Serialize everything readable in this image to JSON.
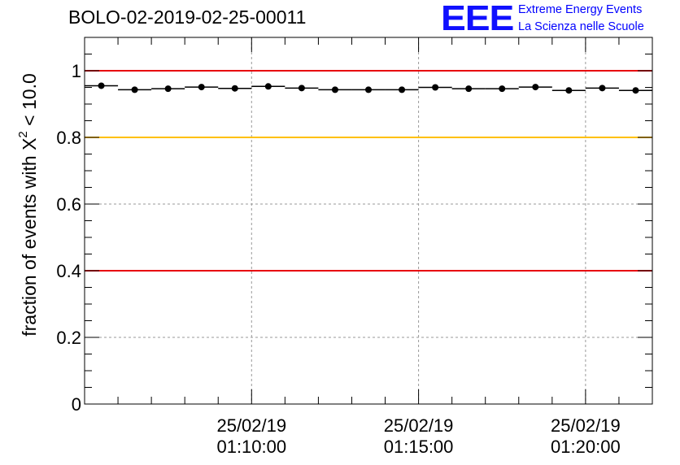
{
  "title": "BOLO-02-2019-02-25-00011",
  "logo": {
    "mark": "EEE",
    "line1": "Extreme Energy Events",
    "line2": "La Scienza nelle Scuole"
  },
  "chart_data": {
    "type": "scatter",
    "ylabel_prefix": "fraction of events with X",
    "ylabel_sup": "2",
    "ylabel_suffix": " < 10.0",
    "xlabel": "",
    "x_unit": "minutes",
    "xlim": [
      "01:05:00",
      "01:22:00"
    ],
    "ylim": [
      0,
      1.1
    ],
    "yticks": [
      0,
      0.2,
      0.4,
      0.6,
      0.8,
      1
    ],
    "ytick_labels": [
      "0",
      "0.2",
      "0.4",
      "0.6",
      "0.8",
      "1"
    ],
    "xticks": [
      {
        "x": "01:10:00",
        "date": "25/02/19",
        "time": "01:10:00"
      },
      {
        "x": "01:15:00",
        "date": "25/02/19",
        "time": "01:15:00"
      },
      {
        "x": "01:20:00",
        "date": "25/02/19",
        "time": "01:20:00"
      }
    ],
    "grid": true,
    "reference_lines": [
      {
        "y": 1.0,
        "color": "#e8000b"
      },
      {
        "y": 0.8,
        "color": "#ffc000"
      },
      {
        "y": 0.4,
        "color": "#e8000b"
      }
    ],
    "series": [
      {
        "color": "#000000",
        "bin_width_min": 1,
        "x": [
          "01:05:30",
          "01:06:30",
          "01:07:30",
          "01:08:30",
          "01:09:30",
          "01:10:30",
          "01:11:30",
          "01:12:30",
          "01:13:30",
          "01:14:30",
          "01:15:30",
          "01:16:30",
          "01:17:30",
          "01:18:30",
          "01:19:30",
          "01:20:30",
          "01:21:30"
        ],
        "y": [
          0.955,
          0.943,
          0.946,
          0.951,
          0.947,
          0.953,
          0.948,
          0.943,
          0.943,
          0.943,
          0.95,
          0.946,
          0.946,
          0.951,
          0.941,
          0.948,
          0.941
        ]
      }
    ]
  }
}
